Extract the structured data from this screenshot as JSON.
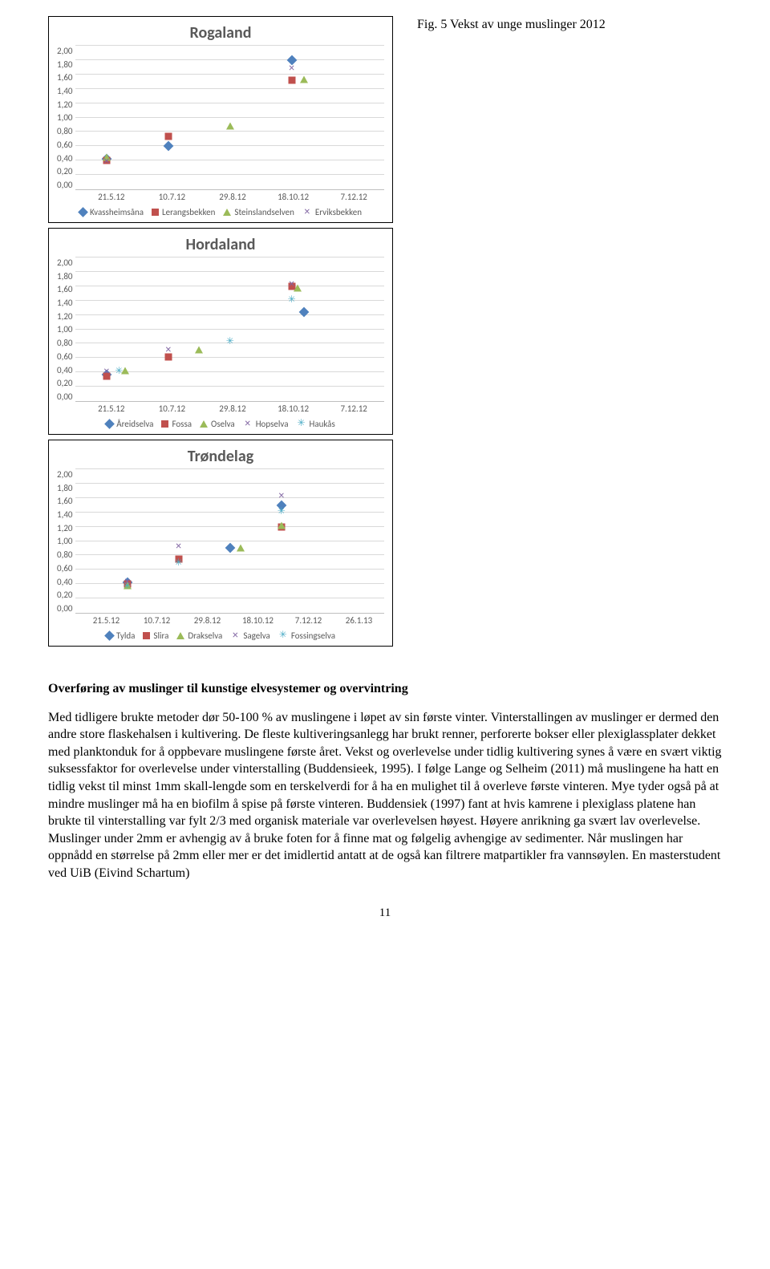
{
  "figCaption": "Fig. 5 Vekst av unge muslinger 2012",
  "colors": {
    "grid": "#d9d9d9",
    "axisText": "#595959",
    "titleText": "#595959"
  },
  "markerStyles": {
    "diamond": {
      "shape": "diamond",
      "color": "#4f81bd"
    },
    "square": {
      "shape": "square",
      "color": "#c0504d"
    },
    "triangle": {
      "shape": "triangle",
      "color": "#9bbb59"
    },
    "x": {
      "shape": "x",
      "color": "#8064a2"
    },
    "star": {
      "shape": "star",
      "color": "#4bacc6"
    }
  },
  "charts": [
    {
      "title": "Rogaland",
      "ylim": [
        0,
        2.0
      ],
      "ytick_step": 0.2,
      "xTicks": [
        "21.5.12",
        "10.7.12",
        "29.8.12",
        "18.10.12",
        "7.12.12"
      ],
      "series": [
        {
          "name": "Kvassheimsåna",
          "marker": "diamond",
          "points": [
            [
              0,
              0.42
            ],
            [
              1,
              0.6
            ],
            [
              3,
              1.8
            ]
          ]
        },
        {
          "name": "Lerangsbekken",
          "marker": "square",
          "points": [
            [
              0,
              0.4
            ],
            [
              1,
              0.74
            ],
            [
              3,
              1.52
            ]
          ]
        },
        {
          "name": "Steinslandselven",
          "marker": "triangle",
          "points": [
            [
              0,
              0.45
            ],
            [
              2,
              0.88
            ],
            [
              3.2,
              1.53
            ]
          ]
        },
        {
          "name": "Erviksbekken",
          "marker": "x",
          "points": [
            [
              0,
              0.38
            ],
            [
              3,
              1.68
            ]
          ]
        }
      ]
    },
    {
      "title": "Hordaland",
      "ylim": [
        0,
        2.0
      ],
      "ytick_step": 0.2,
      "xTicks": [
        "21.5.12",
        "10.7.12",
        "29.8.12",
        "18.10.12",
        "7.12.12"
      ],
      "series": [
        {
          "name": "Åreidselva",
          "marker": "diamond",
          "points": [
            [
              0,
              0.37
            ],
            [
              3.2,
              1.24
            ]
          ]
        },
        {
          "name": "Fossa",
          "marker": "square",
          "points": [
            [
              0,
              0.35
            ],
            [
              1,
              0.62
            ],
            [
              3,
              1.6
            ]
          ]
        },
        {
          "name": "Oselva",
          "marker": "triangle",
          "points": [
            [
              0.3,
              0.42
            ],
            [
              1.5,
              0.72
            ],
            [
              3.1,
              1.58
            ]
          ]
        },
        {
          "name": "Hopselva",
          "marker": "x",
          "points": [
            [
              0,
              0.4
            ],
            [
              1,
              0.7
            ],
            [
              3,
              1.62
            ]
          ]
        },
        {
          "name": "Haukås",
          "marker": "star",
          "points": [
            [
              0.2,
              0.4
            ],
            [
              2,
              0.82
            ],
            [
              3,
              1.4
            ]
          ]
        }
      ]
    },
    {
      "title": "Trøndelag",
      "ylim": [
        0,
        2.0
      ],
      "ytick_step": 0.2,
      "xTicks": [
        "21.5.12",
        "10.7.12",
        "29.8.12",
        "18.10.12",
        "7.12.12",
        "26.1.13"
      ],
      "series": [
        {
          "name": "Tylda",
          "marker": "diamond",
          "points": [
            [
              0.5,
              0.42
            ],
            [
              2.5,
              0.9
            ],
            [
              3.5,
              1.5
            ]
          ]
        },
        {
          "name": "Slira",
          "marker": "square",
          "points": [
            [
              0.5,
              0.4
            ],
            [
              1.5,
              0.75
            ],
            [
              3.5,
              1.2
            ]
          ]
        },
        {
          "name": "Drakselva",
          "marker": "triangle",
          "points": [
            [
              0.5,
              0.38
            ],
            [
              2.7,
              0.9
            ],
            [
              3.5,
              1.22
            ]
          ]
        },
        {
          "name": "Sagelva",
          "marker": "x",
          "points": [
            [
              0.5,
              0.42
            ],
            [
              1.5,
              0.92
            ],
            [
              3.5,
              1.62
            ]
          ]
        },
        {
          "name": "Fossingselva",
          "marker": "star",
          "points": [
            [
              0.5,
              0.36
            ],
            [
              1.5,
              0.68
            ],
            [
              3.5,
              1.4
            ]
          ]
        }
      ]
    }
  ],
  "sectionTitle": "Overføring av muslinger til kunstige elvesystemer og overvintring",
  "bodyParagraph": "Med tidligere brukte metoder dør 50-100 % av muslingene i løpet av sin første vinter. Vinterstallingen av muslinger er dermed den andre store flaskehalsen i kultivering. De fleste kultiveringsanlegg har brukt renner, perforerte bokser eller plexiglassplater dekket med planktonduk for å oppbevare muslingene første året. Vekst og overlevelse under tidlig kultivering synes å være en svært viktig suksessfaktor for overlevelse under vinterstalling (Buddensieek, 1995). I følge Lange og Selheim (2011) må muslingene ha hatt en tidlig vekst til minst 1mm skall-lengde som en terskelverdi for å ha en mulighet til å overleve første vinteren. Mye tyder også på at mindre muslinger må ha en biofilm å spise på første vinteren. Buddensiek (1997) fant at hvis kamrene i plexiglass platene han brukte til vinterstalling var fylt 2/3 med organisk materiale var overlevelsen høyest. Høyere anrikning ga svært lav overlevelse. Muslinger under 2mm er avhengig av å bruke foten for å finne mat og følgelig avhengige av sedimenter. Når muslingen har oppnådd en størrelse på 2mm eller mer er det imidlertid antatt at de også kan filtrere matpartikler fra vannsøylen. En masterstudent ved UiB (Eivind Schartum)",
  "pageNumber": "11"
}
